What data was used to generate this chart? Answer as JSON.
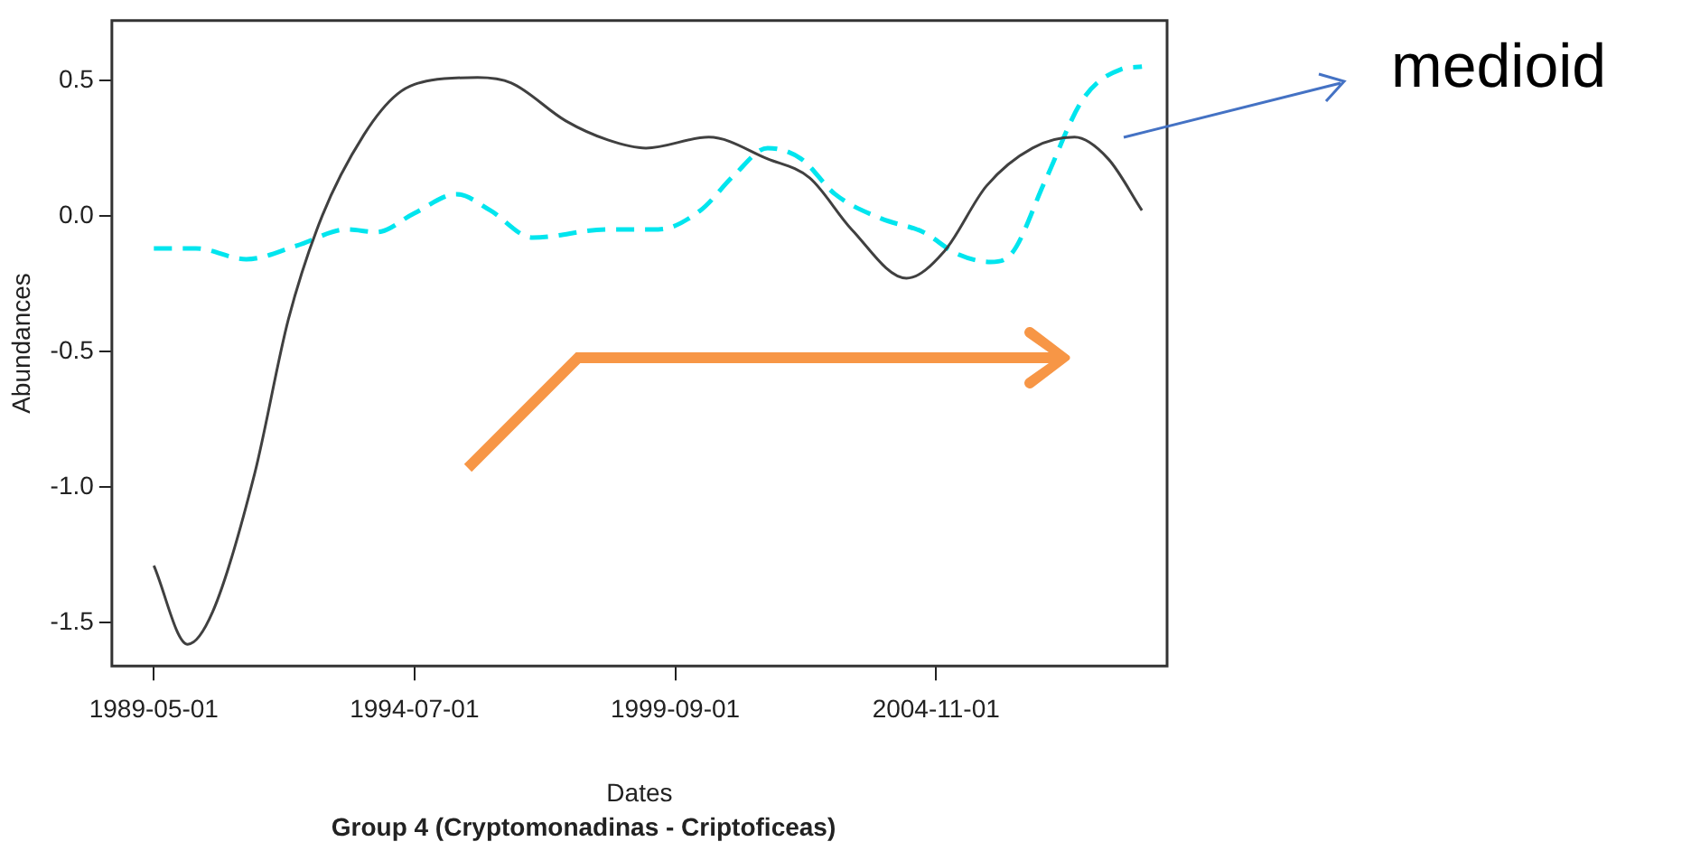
{
  "chart_data": {
    "type": "line",
    "title": "Group 4 (Cryptomonadinas - Criptoficeas)",
    "xlabel": "Dates",
    "ylabel": "Abundances",
    "annotations": [
      "medioid"
    ],
    "xlim": [
      "1988-07",
      "2009-06"
    ],
    "xticks": [
      "1989-05-01",
      "1994-07-01",
      "1999-09-01",
      "2004-11-01"
    ],
    "ylim": [
      -1.66,
      0.72
    ],
    "yticks": [
      -1.5,
      {
        "value": -1,
        "label": "-1.0"
      },
      -0.5,
      {
        "value": 0,
        "label": "0.0"
      },
      0.5
    ],
    "grid": false,
    "legend": false,
    "marker": "none",
    "series": [
      {
        "color": "#404040",
        "line_style": "solid",
        "x": [
          "1989-05",
          "1990-01",
          "1990-07",
          "1991-05",
          "1992-01",
          "1992-09",
          "1993-07",
          "1994-03",
          "1994-11",
          "1995-10",
          "1996-06",
          "1997-07",
          "1998-05",
          "1999-02",
          "2000-05",
          "2001-07",
          "2002-05",
          "2003-03",
          "2004-04",
          "2005-01",
          "2005-11",
          "2006-10",
          "2007-08",
          "2008-04",
          "2008-12"
        ],
        "values": [
          -1.29,
          -1.58,
          -1.46,
          -0.95,
          -0.38,
          0.0,
          0.3,
          0.45,
          0.5,
          0.51,
          0.49,
          0.35,
          0.28,
          0.25,
          0.29,
          0.21,
          0.14,
          -0.05,
          -0.23,
          -0.13,
          0.11,
          0.25,
          0.29,
          0.21,
          0.02
        ]
      },
      {
        "color": "#00e5ee",
        "line_style": "dashed",
        "x": [
          "1989-05",
          "1990-03",
          "1991-03",
          "1992-03",
          "1993-03",
          "1993-10",
          "1994-07",
          "1995-05",
          "1996-01",
          "1996-11",
          "1998-05",
          "1999-05",
          "2000-03",
          "2000-11",
          "2001-07",
          "2002-03",
          "2002-11",
          "2003-10",
          "2004-08",
          "2005-04",
          "2005-12",
          "2006-05",
          "2007-01",
          "2007-10",
          "2008-07",
          "2008-12"
        ],
        "values": [
          -0.12,
          -0.12,
          -0.16,
          -0.11,
          -0.05,
          -0.06,
          0.01,
          0.08,
          0.02,
          -0.08,
          -0.05,
          -0.05,
          0.02,
          0.15,
          0.25,
          0.21,
          0.08,
          -0.01,
          -0.06,
          -0.14,
          -0.17,
          -0.14,
          0.13,
          0.43,
          0.54,
          0.55
        ]
      }
    ]
  }
}
